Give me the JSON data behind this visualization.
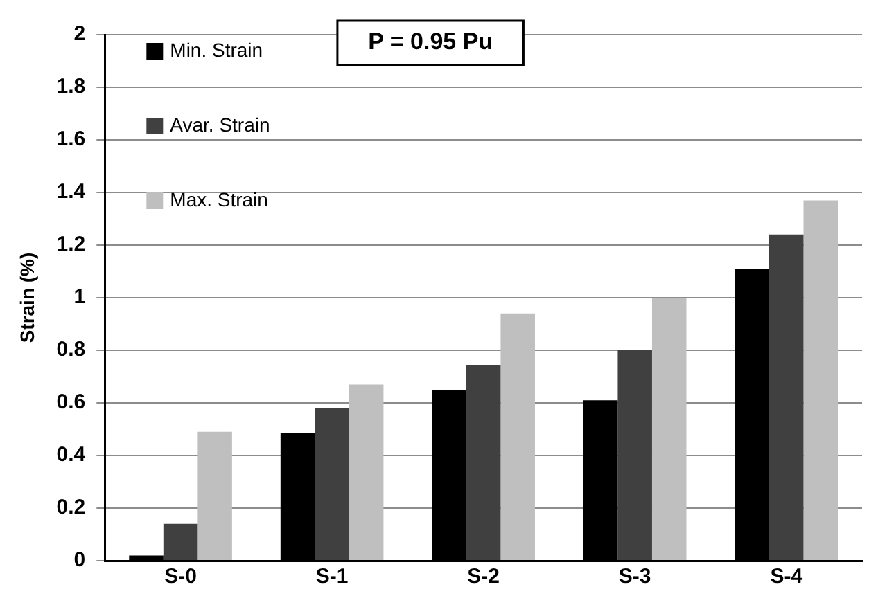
{
  "chart_data": {
    "type": "bar",
    "ylabel": "Strain (%)",
    "categories": [
      "S-0",
      "S-1",
      "S-2",
      "S-3",
      "S-4"
    ],
    "series": [
      {
        "name": "Min. Strain",
        "color": "#000000",
        "values": [
          0.02,
          0.485,
          0.65,
          0.61,
          1.11
        ]
      },
      {
        "name": "Avar. Strain",
        "color": "#404040",
        "values": [
          0.14,
          0.58,
          0.745,
          0.8,
          1.24
        ]
      },
      {
        "name": "Max. Strain",
        "color": "#bfbfbf",
        "values": [
          0.49,
          0.67,
          0.94,
          1.0,
          1.37
        ]
      }
    ],
    "ylim": [
      0,
      2
    ],
    "yticks": [
      0,
      0.2,
      0.4,
      0.6,
      0.8,
      1,
      1.2,
      1.4,
      1.6,
      1.8,
      2
    ],
    "grid": "y",
    "legend": "top left",
    "annotations": [
      "P = 0.95 Pu"
    ]
  }
}
